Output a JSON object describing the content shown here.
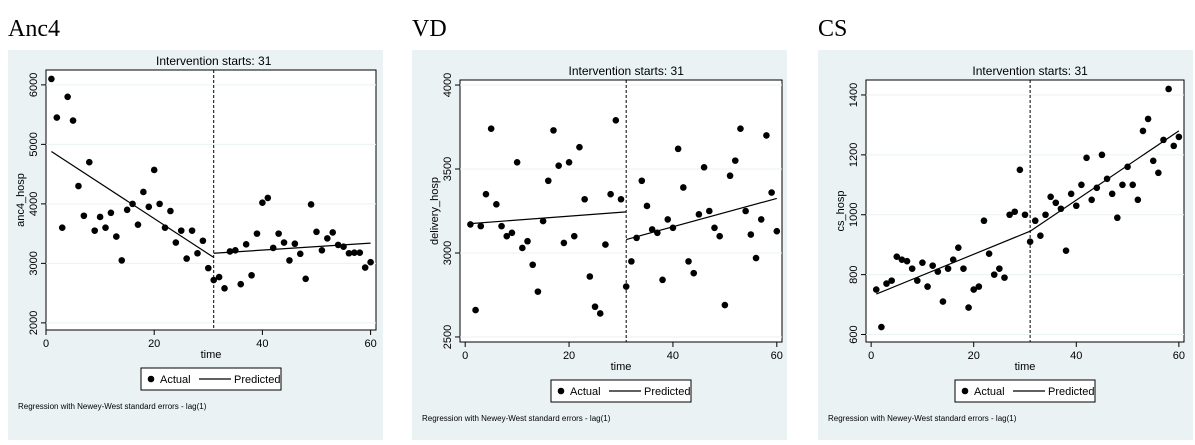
{
  "colors": {
    "panel_background": "#eaf2f3",
    "plot_background": "#ffffff",
    "grid": "#eaf2f3",
    "marker": "#000000",
    "line": "#000000"
  },
  "chart_data": [
    {
      "type": "scatter",
      "panel_title": "Anc4",
      "title": "Intervention starts: 31",
      "xlabel": "time",
      "ylabel": "anc4_hosp",
      "xlim": [
        0,
        61
      ],
      "ylim": [
        1880,
        6250
      ],
      "xticks": [
        0,
        20,
        40,
        60
      ],
      "yticks": [
        2000,
        3000,
        4000,
        5000,
        6000
      ],
      "grid": true,
      "intervention_x": 31,
      "legend": {
        "position": "bottom",
        "entries": [
          "Actual",
          "Predicted"
        ]
      },
      "note": "Regression with Newey-West standard errors - lag(1)",
      "actual": {
        "x": [
          1,
          2,
          3,
          4,
          5,
          6,
          7,
          8,
          9,
          10,
          11,
          12,
          13,
          14,
          15,
          16,
          17,
          18,
          19,
          20,
          21,
          22,
          23,
          24,
          25,
          26,
          27,
          28,
          29,
          30,
          31,
          32,
          33,
          34,
          35,
          36,
          37,
          38,
          39,
          40,
          41,
          42,
          43,
          44,
          45,
          46,
          47,
          48,
          49,
          50,
          51,
          52,
          53,
          54,
          55,
          56,
          57,
          58,
          59,
          60
        ],
        "y": [
          6100,
          5450,
          3600,
          5800,
          5400,
          4300,
          3800,
          4700,
          3550,
          3780,
          3600,
          3850,
          3450,
          3050,
          3900,
          4000,
          3650,
          4200,
          3950,
          4570,
          4000,
          3600,
          3880,
          3350,
          3550,
          3080,
          3550,
          3170,
          3380,
          2920,
          2720,
          2770,
          2580,
          3200,
          3220,
          2650,
          3320,
          2800,
          3500,
          4020,
          4100,
          3260,
          3500,
          3350,
          3050,
          3330,
          3160,
          2740,
          3990,
          3530,
          3220,
          3420,
          3520,
          3310,
          3280,
          3170,
          3180,
          3180,
          2930,
          3020
        ]
      },
      "predicted": [
        {
          "x": [
            1,
            31
          ],
          "y": [
            4880,
            3100
          ]
        },
        {
          "x": [
            31,
            60
          ],
          "y": [
            3170,
            3340
          ]
        }
      ]
    },
    {
      "type": "scatter",
      "panel_title": "VD",
      "title": "Intervention starts: 31",
      "xlabel": "time",
      "ylabel": "delivery_hosp",
      "xlim": [
        -1,
        61
      ],
      "ylim": [
        2470,
        4030
      ],
      "xticks": [
        0,
        20,
        40,
        60
      ],
      "yticks": [
        2500,
        3000,
        3500,
        4000
      ],
      "grid": true,
      "intervention_x": 31,
      "legend": {
        "position": "bottom",
        "entries": [
          "Actual",
          "Predicted"
        ]
      },
      "note": "Regression with Newey-West standard errors - lag(1)",
      "actual": {
        "x": [
          1,
          2,
          3,
          4,
          5,
          6,
          7,
          8,
          9,
          10,
          11,
          12,
          13,
          14,
          15,
          16,
          17,
          18,
          19,
          20,
          21,
          22,
          23,
          24,
          25,
          26,
          27,
          28,
          29,
          30,
          31,
          32,
          33,
          34,
          35,
          36,
          37,
          38,
          39,
          40,
          41,
          42,
          43,
          44,
          45,
          46,
          47,
          48,
          49,
          50,
          51,
          52,
          53,
          54,
          55,
          56,
          57,
          58,
          59,
          60
        ],
        "y": [
          3170,
          2660,
          3160,
          3350,
          3740,
          3290,
          3160,
          3100,
          3120,
          3540,
          3030,
          3070,
          2930,
          2770,
          3190,
          3430,
          3730,
          3520,
          3060,
          3540,
          3100,
          3630,
          3320,
          2860,
          2680,
          2640,
          3050,
          3350,
          3790,
          3320,
          2800,
          2950,
          3090,
          3430,
          3280,
          3140,
          3120,
          2840,
          3200,
          3150,
          3620,
          3390,
          2950,
          2880,
          3230,
          3510,
          3250,
          3150,
          3100,
          2690,
          3460,
          3550,
          3740,
          3250,
          3110,
          2970,
          3200,
          3700,
          3360,
          3130
        ]
      },
      "predicted": [
        {
          "x": [
            1,
            31
          ],
          "y": [
            3175,
            3245
          ]
        },
        {
          "x": [
            31,
            60
          ],
          "y": [
            3080,
            3325
          ]
        }
      ]
    },
    {
      "type": "scatter",
      "panel_title": "CS",
      "title": "Intervention starts: 31",
      "xlabel": "time",
      "ylabel": "cs_hosp",
      "xlim": [
        -1,
        61
      ],
      "ylim": [
        575,
        1450
      ],
      "xticks": [
        0,
        20,
        40,
        60
      ],
      "yticks": [
        600,
        800,
        1000,
        1200,
        1400
      ],
      "grid": true,
      "intervention_x": 31,
      "legend": {
        "position": "bottom",
        "entries": [
          "Actual",
          "Predicted"
        ]
      },
      "note": "Regression with Newey-West standard errors - lag(1)",
      "actual": {
        "x": [
          1,
          2,
          3,
          4,
          5,
          6,
          7,
          8,
          9,
          10,
          11,
          12,
          13,
          14,
          15,
          16,
          17,
          18,
          19,
          20,
          21,
          22,
          23,
          24,
          25,
          26,
          27,
          28,
          29,
          30,
          31,
          32,
          33,
          34,
          35,
          36,
          37,
          38,
          39,
          40,
          41,
          42,
          43,
          44,
          45,
          46,
          47,
          48,
          49,
          50,
          51,
          52,
          53,
          54,
          55,
          56,
          57,
          58,
          59,
          60
        ],
        "y": [
          750,
          625,
          770,
          780,
          860,
          850,
          845,
          820,
          780,
          840,
          760,
          830,
          810,
          710,
          820,
          850,
          890,
          820,
          690,
          750,
          760,
          980,
          870,
          800,
          820,
          790,
          1000,
          1010,
          1150,
          1000,
          910,
          980,
          930,
          1000,
          1060,
          1040,
          1020,
          880,
          1070,
          1030,
          1100,
          1190,
          1050,
          1090,
          1200,
          1120,
          1070,
          990,
          1100,
          1160,
          1100,
          1050,
          1280,
          1320,
          1180,
          1140,
          1250,
          1420,
          1230,
          1260
        ]
      },
      "predicted": [
        {
          "x": [
            1,
            31
          ],
          "y": [
            735,
            945
          ]
        },
        {
          "x": [
            31,
            60
          ],
          "y": [
            945,
            1280
          ]
        }
      ]
    }
  ]
}
